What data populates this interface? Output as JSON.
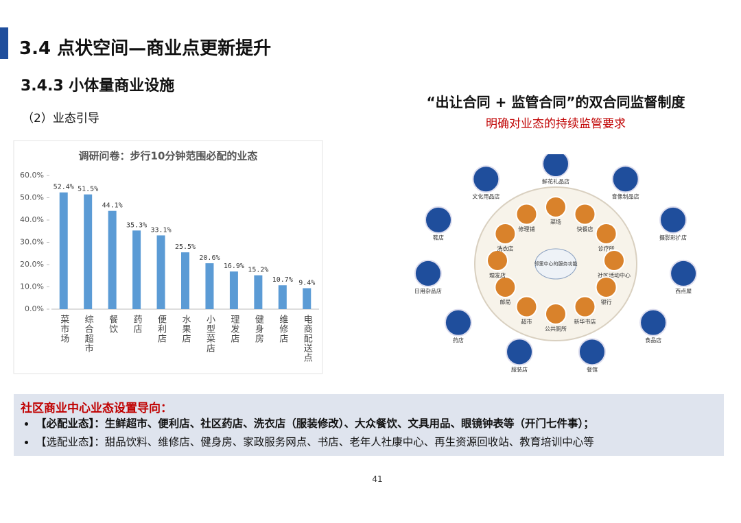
{
  "header": {
    "title": "3.4 点状空间—商业点更新提升",
    "subtitle": "3.4.3 小体量商业设施",
    "section": "（2）业态引导"
  },
  "chart_data": {
    "type": "bar",
    "title": "调研问卷：步行10分钟范围必配的业态",
    "categories": [
      "菜市场",
      "综合超市",
      "餐饮",
      "药店",
      "便利店",
      "水果店",
      "小型菜店",
      "理发店",
      "健身房",
      "维修店",
      "电商配送点"
    ],
    "values": [
      52.4,
      51.5,
      44.1,
      35.3,
      33.1,
      25.5,
      20.6,
      16.9,
      15.2,
      10.7,
      9.4
    ],
    "value_labels": [
      "52.4%",
      "51.5%",
      "44.1%",
      "35.3%",
      "33.1%",
      "25.5%",
      "20.6%",
      "16.9%",
      "15.2%",
      "10.7%",
      "9.4%"
    ],
    "color": "#5b9bd5",
    "ylim": [
      0,
      60
    ],
    "yticks": [
      {
        "value": 0,
        "label": "0.0%"
      },
      {
        "value": 10,
        "label": "10.0%"
      },
      {
        "value": 20,
        "label": "20.0%"
      },
      {
        "value": 30,
        "label": "30.0%"
      },
      {
        "value": 40,
        "label": "40.0%"
      },
      {
        "value": 50,
        "label": "50.0%"
      },
      {
        "value": 60,
        "label": "60.0%"
      }
    ],
    "grid": false
  },
  "diagram": {
    "title": "“出让合同 + 监管合同”的双合同监督制度",
    "subtitle": "明确对业态的持续监管要求",
    "center": "邻里中心的服务功能",
    "inner_nodes": [
      "菜场",
      "快餐店",
      "诊疗所",
      "社区活动中心",
      "银行",
      "新华书店",
      "公共厕所",
      "超市",
      "邮局",
      "理发店",
      "洗衣店",
      "修理铺"
    ],
    "outer_nodes": [
      "鲜花礼品店",
      "音像制品店",
      "摄影彩扩店",
      "西点屋",
      "食品店",
      "餐馆",
      "服装店",
      "药店",
      "日用杂品店",
      "鞋店",
      "文化用品店"
    ]
  },
  "guidance": {
    "heading": "社区商业中心业态设置导向：",
    "items": [
      "【必配业态】：生鲜超市、便利店、社区药店、洗衣店（服装修改）、大众餐饮、文具用品、眼镜钟表等（开门七件事）；",
      "【选配业态】：甜品饮料、维修店、健身房、家政服务网点、书店、老年人社康中心、再生资源回收站、教育培训中心等"
    ]
  },
  "page_number": "41"
}
